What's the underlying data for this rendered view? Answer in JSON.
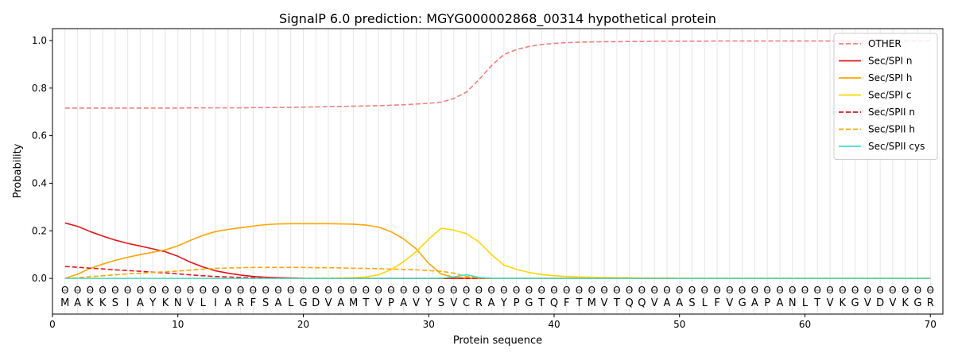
{
  "chart_data": {
    "type": "line",
    "title": "SignalP 6.0 prediction: MGYG000002868_00314 hypothetical protein",
    "xlabel": "Protein sequence",
    "ylabel": "Probability",
    "xlim": [
      0,
      71
    ],
    "ylim": [
      -0.15,
      1.05
    ],
    "x_ticks": [
      0,
      10,
      20,
      30,
      40,
      50,
      60,
      70
    ],
    "y_ticks": [
      0.0,
      0.2,
      0.4,
      0.6,
      0.8,
      1.0
    ],
    "x_tick_labels": [
      "0",
      "10",
      "20",
      "30",
      "40",
      "50",
      "60",
      "70"
    ],
    "y_tick_labels": [
      "0.0",
      "0.2",
      "0.4",
      "0.6",
      "0.8",
      "1.0"
    ],
    "grid": "vertical lines at each residue",
    "legend_position": "top-right",
    "sequence": [
      "M",
      "A",
      "K",
      "K",
      "S",
      "I",
      "A",
      "Y",
      "K",
      "N",
      "V",
      "L",
      "I",
      "A",
      "R",
      "F",
      "S",
      "A",
      "L",
      "G",
      "D",
      "V",
      "A",
      "M",
      "T",
      "V",
      "P",
      "A",
      "V",
      "Y",
      "S",
      "V",
      "C",
      "R",
      "A",
      "Y",
      "P",
      "G",
      "T",
      "Q",
      "F",
      "T",
      "M",
      "V",
      "T",
      "Q",
      "Q",
      "V",
      "A",
      "A",
      "S",
      "L",
      "F",
      "V",
      "G",
      "A",
      "P",
      "A",
      "N",
      "L",
      "T",
      "V",
      "K",
      "G",
      "V",
      "D",
      "V",
      "K",
      "G",
      "R"
    ],
    "region_marker": "O",
    "series": [
      {
        "name": "OTHER",
        "color": "#f08080",
        "dash": "dashed",
        "values": [
          0.716,
          0.716,
          0.716,
          0.716,
          0.716,
          0.716,
          0.716,
          0.716,
          0.716,
          0.716,
          0.717,
          0.717,
          0.717,
          0.717,
          0.717,
          0.718,
          0.718,
          0.719,
          0.719,
          0.72,
          0.721,
          0.722,
          0.723,
          0.724,
          0.725,
          0.726,
          0.728,
          0.73,
          0.733,
          0.736,
          0.741,
          0.756,
          0.783,
          0.835,
          0.894,
          0.941,
          0.962,
          0.975,
          0.983,
          0.988,
          0.991,
          0.993,
          0.994,
          0.995,
          0.995,
          0.996,
          0.996,
          0.997,
          0.997,
          0.997,
          0.997,
          0.997,
          0.998,
          0.998,
          0.998,
          0.998,
          0.998,
          0.998,
          0.998,
          0.998,
          0.998,
          0.998,
          0.998,
          0.998,
          0.998,
          0.998,
          0.998,
          0.998,
          0.998,
          0.999
        ]
      },
      {
        "name": "Sec/SPI n",
        "color": "#e8141a",
        "dash": "solid",
        "values": [
          0.233,
          0.219,
          0.197,
          0.178,
          0.161,
          0.147,
          0.136,
          0.124,
          0.112,
          0.093,
          0.068,
          0.048,
          0.032,
          0.022,
          0.014,
          0.008,
          0.005,
          0.003,
          0.002,
          0.001,
          0.001,
          0.001,
          0.0,
          0.0,
          0.0,
          0.0,
          0.0,
          0.0,
          0.0,
          0.0,
          0.0,
          0.0,
          0.0,
          0.0,
          0.0,
          0.0,
          0.0,
          0.0,
          0.0,
          0.0,
          0.0,
          0.0,
          0.0,
          0.0,
          0.0,
          0.0,
          0.0,
          0.0,
          0.0,
          0.0,
          0.0,
          0.0,
          0.0,
          0.0,
          0.0,
          0.0,
          0.0,
          0.0,
          0.0,
          0.0,
          0.0,
          0.0,
          0.0,
          0.0,
          0.0,
          0.0,
          0.0,
          0.0,
          0.0,
          0.0
        ]
      },
      {
        "name": "Sec/SPI h",
        "color": "#ffa500",
        "dash": "solid",
        "values": [
          0.0,
          0.018,
          0.042,
          0.06,
          0.076,
          0.089,
          0.1,
          0.11,
          0.12,
          0.137,
          0.16,
          0.181,
          0.197,
          0.206,
          0.213,
          0.22,
          0.226,
          0.229,
          0.23,
          0.23,
          0.23,
          0.23,
          0.229,
          0.228,
          0.224,
          0.216,
          0.196,
          0.166,
          0.124,
          0.063,
          0.018,
          0.005,
          0.002,
          0.001,
          0.0,
          0.0,
          0.0,
          0.0,
          0.0,
          0.0,
          0.0,
          0.0,
          0.0,
          0.0,
          0.0,
          0.0,
          0.0,
          0.0,
          0.0,
          0.0,
          0.0,
          0.0,
          0.0,
          0.0,
          0.0,
          0.0,
          0.0,
          0.0,
          0.0,
          0.0,
          0.0,
          0.0,
          0.0,
          0.0,
          0.0,
          0.0,
          0.0,
          0.0,
          0.0,
          0.0
        ]
      },
      {
        "name": "Sec/SPI c",
        "color": "#ffd700",
        "dash": "solid",
        "values": [
          0.0,
          0.0,
          0.0,
          0.0,
          0.0,
          0.0,
          0.0,
          0.0,
          0.0,
          0.0,
          0.0,
          0.0,
          0.0,
          0.0,
          0.0,
          0.0,
          0.0,
          0.0,
          0.0,
          0.001,
          0.001,
          0.001,
          0.002,
          0.003,
          0.006,
          0.015,
          0.037,
          0.07,
          0.112,
          0.165,
          0.211,
          0.203,
          0.188,
          0.154,
          0.1,
          0.056,
          0.038,
          0.025,
          0.016,
          0.011,
          0.008,
          0.006,
          0.005,
          0.004,
          0.003,
          0.003,
          0.002,
          0.002,
          0.002,
          0.001,
          0.001,
          0.001,
          0.001,
          0.001,
          0.001,
          0.001,
          0.001,
          0.001,
          0.001,
          0.001,
          0.001,
          0.001,
          0.001,
          0.001,
          0.001,
          0.001,
          0.001,
          0.001,
          0.001,
          0.001
        ]
      },
      {
        "name": "Sec/SPII n",
        "color": "#e8141a",
        "dash": "dashed",
        "values": [
          0.05,
          0.047,
          0.043,
          0.04,
          0.036,
          0.033,
          0.03,
          0.026,
          0.023,
          0.019,
          0.015,
          0.011,
          0.008,
          0.006,
          0.004,
          0.003,
          0.002,
          0.001,
          0.001,
          0.0,
          0.0,
          0.0,
          0.0,
          0.0,
          0.0,
          0.0,
          0.0,
          0.0,
          0.0,
          0.0,
          0.0,
          0.0,
          0.0,
          0.0,
          0.0,
          0.0,
          0.0,
          0.0,
          0.0,
          0.0,
          0.0,
          0.0,
          0.0,
          0.0,
          0.0,
          0.0,
          0.0,
          0.0,
          0.0,
          0.0,
          0.0,
          0.0,
          0.0,
          0.0,
          0.0,
          0.0,
          0.0,
          0.0,
          0.0,
          0.0,
          0.0,
          0.0,
          0.0,
          0.0,
          0.0,
          0.0,
          0.0,
          0.0,
          0.0,
          0.0
        ]
      },
      {
        "name": "Sec/SPII h",
        "color": "#ffa500",
        "dash": "dashed",
        "values": [
          0.0,
          0.003,
          0.007,
          0.011,
          0.015,
          0.019,
          0.022,
          0.025,
          0.028,
          0.031,
          0.035,
          0.039,
          0.042,
          0.044,
          0.045,
          0.046,
          0.046,
          0.046,
          0.046,
          0.046,
          0.045,
          0.045,
          0.044,
          0.043,
          0.042,
          0.041,
          0.039,
          0.038,
          0.036,
          0.033,
          0.03,
          0.022,
          0.008,
          0.002,
          0.0,
          0.0,
          0.0,
          0.0,
          0.0,
          0.0,
          0.0,
          0.0,
          0.0,
          0.0,
          0.0,
          0.0,
          0.0,
          0.0,
          0.0,
          0.0,
          0.0,
          0.0,
          0.0,
          0.0,
          0.0,
          0.0,
          0.0,
          0.0,
          0.0,
          0.0,
          0.0,
          0.0,
          0.0,
          0.0,
          0.0,
          0.0,
          0.0,
          0.0,
          0.0,
          0.0
        ]
      },
      {
        "name": "Sec/SPII cys",
        "color": "#40e0d0",
        "dash": "solid",
        "values": [
          0.0,
          0.0,
          0.0,
          0.0,
          0.0,
          0.0,
          0.0,
          0.0,
          0.0,
          0.0,
          0.0,
          0.0,
          0.0,
          0.0,
          0.0,
          0.0,
          0.0,
          0.0,
          0.0,
          0.0,
          0.0,
          0.0,
          0.0,
          0.0,
          0.0,
          0.0,
          0.0,
          0.0,
          0.0,
          0.0,
          0.001,
          0.006,
          0.016,
          0.004,
          0.001,
          0.0,
          0.0,
          0.0,
          0.0,
          0.0,
          0.0,
          0.0,
          0.0,
          0.0,
          0.0,
          0.0,
          0.0,
          0.0,
          0.0,
          0.0,
          0.0,
          0.0,
          0.0,
          0.0,
          0.0,
          0.0,
          0.0,
          0.0,
          0.0,
          0.0,
          0.0,
          0.0,
          0.0,
          0.0,
          0.0,
          0.0,
          0.0,
          0.0,
          0.0,
          0.0
        ]
      }
    ]
  }
}
